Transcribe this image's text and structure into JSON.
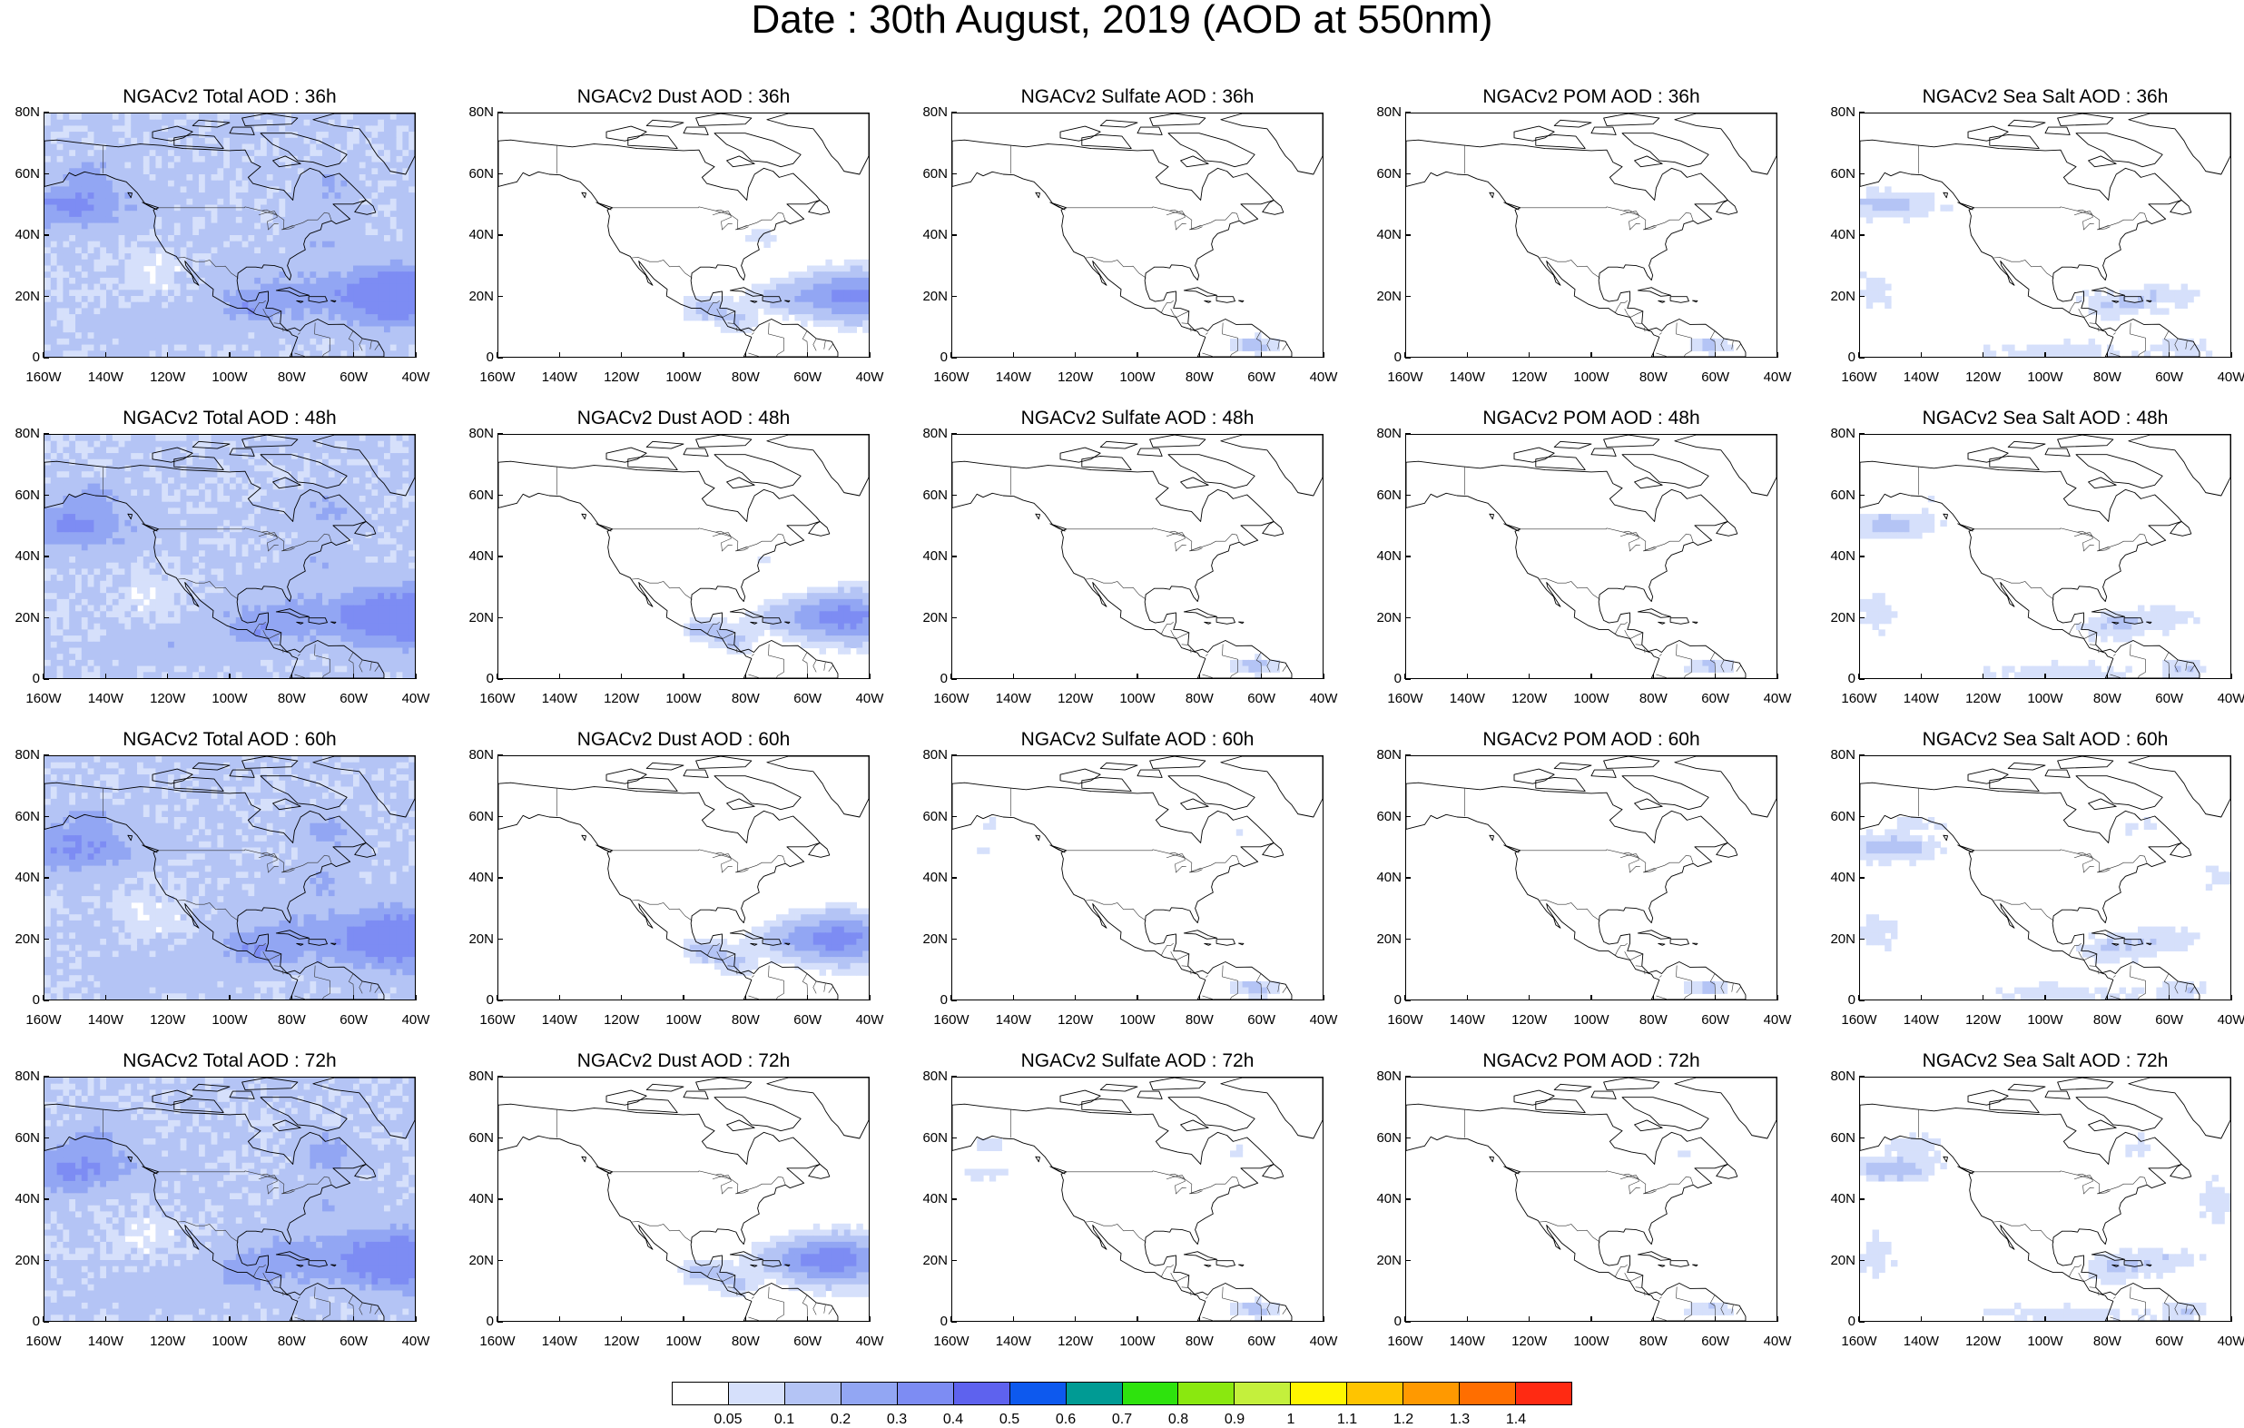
{
  "title": "Date : 30th August, 2019 (AOD at 550nm)",
  "lat_labels": [
    "80N",
    "60N",
    "40N",
    "20N",
    "0"
  ],
  "lon_labels": [
    "160W",
    "140W",
    "120W",
    "100W",
    "80W",
    "60W",
    "40W"
  ],
  "panels": [
    {
      "title": "NGACv2 Total AOD : 36h",
      "species": "total",
      "forecast_hour": 36
    },
    {
      "title": "NGACv2 Dust AOD : 36h",
      "species": "dust",
      "forecast_hour": 36
    },
    {
      "title": "NGACv2 Sulfate AOD : 36h",
      "species": "sulfate",
      "forecast_hour": 36
    },
    {
      "title": "NGACv2 POM AOD : 36h",
      "species": "pom",
      "forecast_hour": 36
    },
    {
      "title": "NGACv2 Sea Salt AOD : 36h",
      "species": "seasalt",
      "forecast_hour": 36
    },
    {
      "title": "NGACv2 Total AOD : 48h",
      "species": "total",
      "forecast_hour": 48
    },
    {
      "title": "NGACv2 Dust AOD : 48h",
      "species": "dust",
      "forecast_hour": 48
    },
    {
      "title": "NGACv2 Sulfate AOD : 48h",
      "species": "sulfate",
      "forecast_hour": 48
    },
    {
      "title": "NGACv2 POM AOD : 48h",
      "species": "pom",
      "forecast_hour": 48
    },
    {
      "title": "NGACv2 Sea Salt AOD : 48h",
      "species": "seasalt",
      "forecast_hour": 48
    },
    {
      "title": "NGACv2 Total AOD : 60h",
      "species": "total",
      "forecast_hour": 60
    },
    {
      "title": "NGACv2 Dust AOD : 60h",
      "species": "dust",
      "forecast_hour": 60
    },
    {
      "title": "NGACv2 Sulfate AOD : 60h",
      "species": "sulfate",
      "forecast_hour": 60
    },
    {
      "title": "NGACv2 POM AOD : 60h",
      "species": "pom",
      "forecast_hour": 60
    },
    {
      "title": "NGACv2 Sea Salt AOD : 60h",
      "species": "seasalt",
      "forecast_hour": 60
    },
    {
      "title": "NGACv2 Total AOD : 72h",
      "species": "total",
      "forecast_hour": 72
    },
    {
      "title": "NGACv2 Dust AOD : 72h",
      "species": "dust",
      "forecast_hour": 72
    },
    {
      "title": "NGACv2 Sulfate AOD : 72h",
      "species": "sulfate",
      "forecast_hour": 72
    },
    {
      "title": "NGACv2 POM AOD : 72h",
      "species": "pom",
      "forecast_hour": 72
    },
    {
      "title": "NGACv2 Sea Salt  AOD : 72h",
      "species": "seasalt",
      "forecast_hour": 72
    }
  ],
  "colorbar": {
    "labels": [
      "0.05",
      "0.1",
      "0.2",
      "0.3",
      "0.4",
      "0.5",
      "0.6",
      "0.7",
      "0.8",
      "0.9",
      "1",
      "1.1",
      "1.2",
      "1.3",
      "1.4"
    ],
    "colors": [
      "#ffffff",
      "#d6e0fb",
      "#b4c4f5",
      "#92a6f3",
      "#7d8cf3",
      "#5e62ee",
      "#0d59ee",
      "#009b94",
      "#2ee30d",
      "#8ae80f",
      "#c4f03c",
      "#fff500",
      "#ffc400",
      "#ff9900",
      "#ff6e00",
      "#ff2a12"
    ]
  },
  "colors": {
    "shade_light": "#d6e0fb",
    "shade_mid": "#b4c4f5",
    "shade_dark": "#92a6f3",
    "coast": "#000000"
  }
}
